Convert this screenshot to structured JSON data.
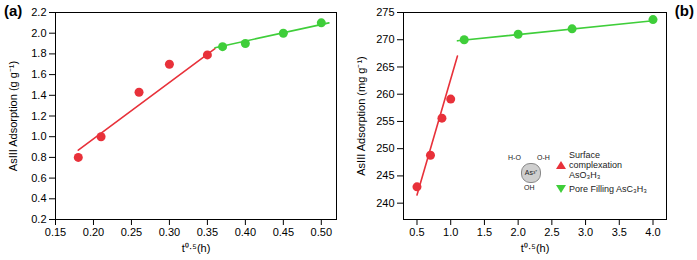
{
  "chart_data": [
    {
      "type": "scatter",
      "title": "(a)",
      "x_label": "t⁰·⁵(h)",
      "y_label": "AsIII Adsorption (g g⁻¹)",
      "xlim": [
        0.15,
        0.52
      ],
      "ylim": [
        0.2,
        2.2
      ],
      "xticks": [
        {
          "value": 0.15,
          "label": "0.15"
        },
        {
          "value": 0.2,
          "label": "0.20"
        },
        {
          "value": 0.25,
          "label": "0.25"
        },
        {
          "value": 0.3,
          "label": "0.30"
        },
        {
          "value": 0.35,
          "label": "0.35"
        },
        {
          "value": 0.4,
          "label": "0.40"
        },
        {
          "value": 0.45,
          "label": "0.45"
        },
        {
          "value": 0.5,
          "label": "0.50"
        }
      ],
      "yticks": [
        0.2,
        0.4,
        0.6,
        0.8,
        {
          "value": 1,
          "label": "1.0"
        },
        1.2,
        1.4,
        1.6,
        1.8,
        {
          "value": 2,
          "label": "2.0"
        },
        2.2
      ],
      "grid": false,
      "series": [
        {
          "type": "scatter",
          "color": "#e8313a",
          "marker": "circle",
          "x": [
            0.18,
            0.21,
            0.26,
            0.3,
            0.35
          ],
          "values": [
            0.8,
            1.0,
            1.43,
            1.7,
            1.79
          ]
        },
        {
          "type": "scatter",
          "color": "#3fce3a",
          "marker": "circle",
          "x": [
            0.37,
            0.4,
            0.45,
            0.5
          ],
          "values": [
            1.87,
            1.9,
            2.0,
            2.1
          ]
        },
        {
          "type": "line",
          "color": "#e8313a",
          "x": [
            0.18,
            0.36
          ],
          "values": [
            0.87,
            1.85
          ]
        },
        {
          "type": "line",
          "color": "#3fce3a",
          "x": [
            0.36,
            0.51
          ],
          "values": [
            1.86,
            2.1
          ]
        }
      ]
    },
    {
      "type": "scatter",
      "title": "(b)",
      "x_label": "t⁰·⁵(h)",
      "y_label": "AsIII Adsorption (mg g⁻¹)",
      "xlim": [
        0.3,
        4.2
      ],
      "ylim": [
        237,
        275
      ],
      "xticks": [
        0.5,
        {
          "value": 1,
          "label": "1.0"
        },
        1.5,
        {
          "value": 2,
          "label": "2.0"
        },
        2.5,
        {
          "value": 3,
          "label": "3.0"
        },
        3.5,
        {
          "value": 4,
          "label": "4.0"
        }
      ],
      "yticks": [
        240,
        245,
        250,
        255,
        260,
        265,
        270,
        275
      ],
      "grid": false,
      "series": [
        {
          "type": "scatter",
          "color": "#e8313a",
          "marker": "circle",
          "x": [
            0.5,
            0.7,
            0.87,
            1.0
          ],
          "values": [
            243,
            248.8,
            255.6,
            259.1
          ]
        },
        {
          "type": "scatter",
          "color": "#3fce3a",
          "marker": "circle",
          "x": [
            1.2,
            2.0,
            2.8,
            4.0
          ],
          "values": [
            270,
            271,
            272,
            273.7
          ]
        },
        {
          "type": "line",
          "color": "#e8313a",
          "x": [
            0.5,
            1.1
          ],
          "values": [
            241.5,
            267
          ]
        },
        {
          "type": "line",
          "color": "#3fce3a",
          "x": [
            1.1,
            4.0
          ],
          "values": [
            269.8,
            273.5
          ]
        }
      ],
      "molecule": {
        "center": "As³⁺",
        "groups": [
          "H-O",
          "O-H",
          "OH"
        ]
      },
      "annotations": [
        {
          "text": "Surface complexation AsO₃H₃",
          "marker": "triangle-up",
          "color": "#e8313a"
        },
        {
          "text": "Pore Filling AsC₃H₃",
          "marker": "triangle-down",
          "color": "#3fce3a"
        }
      ]
    }
  ]
}
